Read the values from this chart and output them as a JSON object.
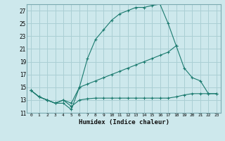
{
  "title": "",
  "xlabel": "Humidex (Indice chaleur)",
  "bg_color": "#cde8ec",
  "line_color": "#1a7a6e",
  "grid_color": "#aacfd4",
  "xmin": -0.5,
  "xmax": 23.5,
  "ymin": 11,
  "ymax": 28,
  "yticks": [
    11,
    13,
    15,
    17,
    19,
    21,
    23,
    25,
    27
  ],
  "xticks": [
    0,
    1,
    2,
    3,
    4,
    5,
    6,
    7,
    8,
    9,
    10,
    11,
    12,
    13,
    14,
    15,
    16,
    17,
    18,
    19,
    20,
    21,
    22,
    23
  ],
  "line1_x": [
    0,
    1,
    2,
    3,
    4,
    5,
    6,
    7,
    8,
    9,
    10,
    11,
    12,
    13,
    14,
    15,
    16,
    17,
    18
  ],
  "line1_y": [
    14.5,
    13.5,
    13.0,
    12.5,
    12.5,
    11.5,
    15.0,
    19.5,
    22.5,
    24.0,
    25.5,
    26.5,
    27.0,
    27.5,
    27.5,
    27.8,
    28.0,
    25.0,
    21.5
  ],
  "line2_x": [
    0,
    1,
    2,
    3,
    4,
    5,
    6,
    7,
    8,
    9,
    10,
    11,
    12,
    13,
    14,
    15,
    16,
    17,
    18,
    19,
    20,
    21,
    22,
    23
  ],
  "line2_y": [
    14.5,
    13.5,
    13.0,
    12.5,
    13.0,
    12.5,
    15.0,
    15.5,
    16.0,
    16.5,
    17.0,
    17.5,
    18.0,
    18.5,
    19.0,
    19.5,
    20.0,
    20.5,
    21.5,
    18.0,
    16.5,
    16.0,
    14.0,
    14.0
  ],
  "line3_x": [
    0,
    1,
    2,
    3,
    4,
    5,
    6,
    7,
    8,
    9,
    10,
    11,
    12,
    13,
    14,
    15,
    16,
    17,
    18,
    19,
    20,
    21,
    22,
    23
  ],
  "line3_y": [
    14.5,
    13.5,
    13.0,
    12.5,
    13.0,
    12.0,
    13.0,
    13.2,
    13.3,
    13.3,
    13.3,
    13.3,
    13.3,
    13.3,
    13.3,
    13.3,
    13.3,
    13.3,
    13.5,
    13.8,
    14.0,
    14.0,
    14.0,
    14.0
  ]
}
